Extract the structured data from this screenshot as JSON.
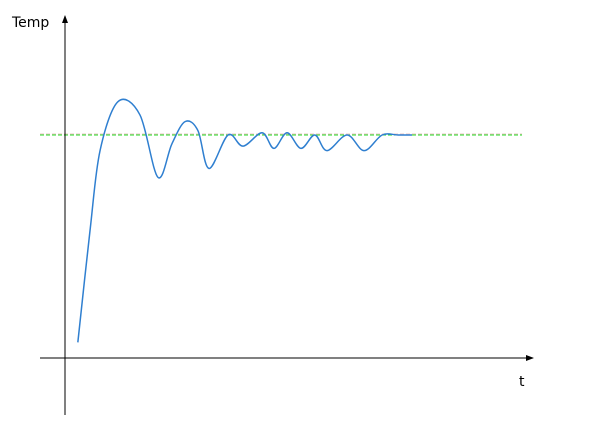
{
  "chart_data": {
    "type": "line",
    "title": "",
    "xlabel": "t",
    "ylabel": "Temp",
    "grid": false,
    "xlim": [
      -0.7,
      13.5
    ],
    "ylim": [
      -0.26,
      1.54
    ],
    "setpoint": 1.0,
    "colors": {
      "response": "#2f7fd0",
      "setpoint": "#22dd22",
      "setpoint_shadow": "#d08080",
      "axis": "#000000"
    },
    "series": [
      {
        "x": [
          0.37,
          0.72,
          1.01,
          1.53,
          2.16,
          2.68,
          3.08,
          3.46,
          3.83,
          4.15,
          4.7,
          5.13,
          5.68,
          6.02,
          6.4,
          6.8,
          7.2,
          7.55,
          8.13,
          8.62,
          9.14,
          9.6,
          10.0
        ],
        "y": [
          0.07,
          0.57,
          0.93,
          1.15,
          1.09,
          0.81,
          0.96,
          1.06,
          1.02,
          0.85,
          1.0,
          0.95,
          1.01,
          0.94,
          1.01,
          0.94,
          1.0,
          0.93,
          1.0,
          0.93,
          1.0,
          1.0,
          1.0
        ]
      }
    ]
  }
}
